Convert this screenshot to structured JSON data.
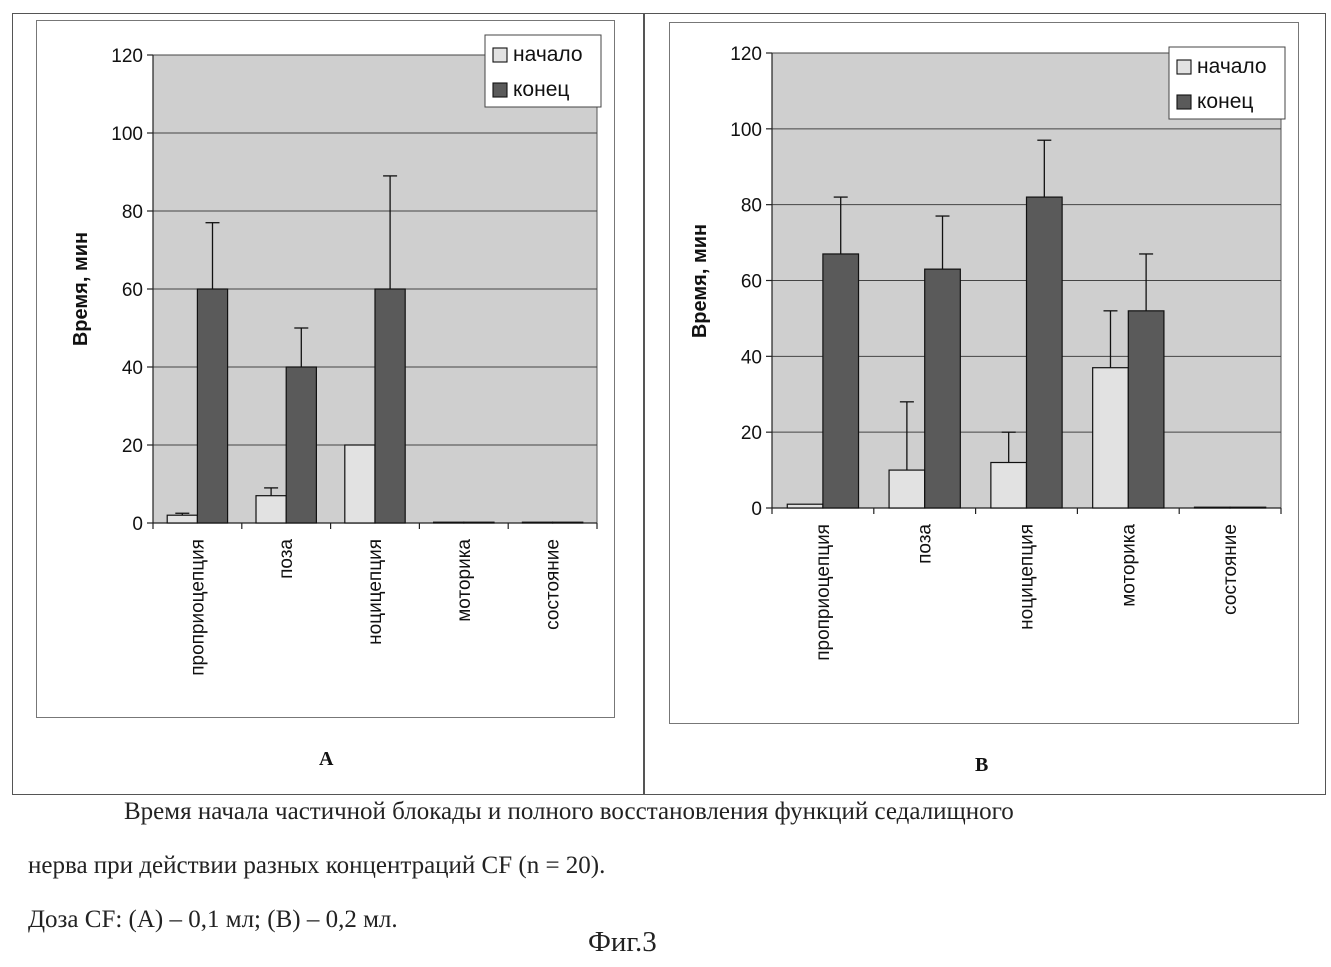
{
  "chart_data": [
    {
      "type": "bar",
      "panel_label": "A",
      "ylabel": "Время, мин",
      "ylim": [
        0,
        120
      ],
      "yticks": [
        0,
        20,
        40,
        60,
        80,
        100,
        120
      ],
      "categories": [
        "проприоцепция",
        "поза",
        "ноцицепция",
        "моторика",
        "состояние"
      ],
      "series": [
        {
          "name": "начало",
          "values": [
            2,
            7,
            20,
            0,
            0
          ],
          "errors": [
            0.5,
            2,
            0,
            0,
            0
          ],
          "color": "#e2e2e2"
        },
        {
          "name": "конец",
          "values": [
            60,
            40,
            60,
            0,
            0
          ],
          "errors": [
            17,
            10,
            29,
            0,
            0
          ],
          "color": "#5a5a5a"
        }
      ],
      "legend": "top-right",
      "grid": true
    },
    {
      "type": "bar",
      "panel_label": "B",
      "ylabel": "Время, мин",
      "ylim": [
        0,
        120
      ],
      "yticks": [
        0,
        20,
        40,
        60,
        80,
        100,
        120
      ],
      "categories": [
        "проприоцепция",
        "поза",
        "ноцицепция",
        "моторика",
        "состояние"
      ],
      "series": [
        {
          "name": "начало",
          "values": [
            1,
            10,
            12,
            37,
            0
          ],
          "errors": [
            0,
            18,
            8,
            15,
            0
          ],
          "color": "#e2e2e2"
        },
        {
          "name": "конец",
          "values": [
            67,
            63,
            82,
            52,
            0
          ],
          "errors": [
            15,
            14,
            15,
            15,
            0
          ],
          "color": "#5a5a5a"
        }
      ],
      "legend": "top-right",
      "grid": true
    }
  ],
  "caption": {
    "line1": "Время начала частичной блокады и полного восстановления функций седалищного",
    "line2": "нерва при действии разных концентраций CF (n = 20).",
    "line3": "Доза CF: (A) – 0,1 мл; (B) – 0,2 мл."
  },
  "figure_title": "Фиг.3"
}
